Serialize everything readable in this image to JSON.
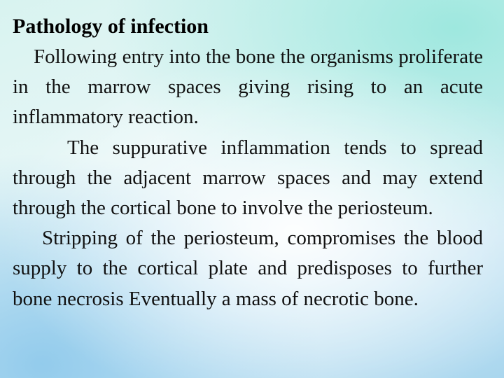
{
  "slide": {
    "title": "Pathology of infection",
    "paragraphs": [
      "Following entry into the bone the organisms proliferate in the marrow spaces giving rising to an acute inflammatory reaction.",
      "The suppurative inflammation tends to spread through the adjacent marrow spaces and may extend through the cortical  bone to involve the periosteum.",
      "Stripping of the periosteum,  compromises the blood supply to the cortical plate and predisposes to further bone necrosis Eventually a mass of necrotic bone."
    ]
  }
}
